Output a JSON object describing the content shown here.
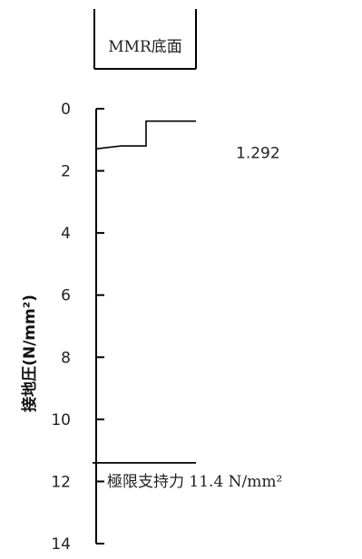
{
  "chart_data": {
    "type": "line",
    "orientation": "depth-profile",
    "header_label": "MMR底面",
    "ylabel": "接地圧(N/mm²)",
    "ylim": [
      0,
      14
    ],
    "yticks": [
      0,
      2,
      4,
      6,
      8,
      10,
      12,
      14
    ],
    "y_inverted": true,
    "series": [
      {
        "profile": [
          {
            "pos": 0.0,
            "value": 1.292
          },
          {
            "pos": 0.25,
            "value": 1.2
          },
          {
            "pos": 0.5,
            "value": 1.2
          },
          {
            "pos": 0.5,
            "value": 0.4
          },
          {
            "pos": 1.0,
            "value": 0.4
          }
        ]
      }
    ],
    "annotations": [
      {
        "text": "1.292",
        "ref_value": 1.292
      },
      {
        "text": "極限支持力 11.4 N/mm²",
        "ref_value": 11.4
      }
    ],
    "reference_line": {
      "value": 11.4
    }
  }
}
